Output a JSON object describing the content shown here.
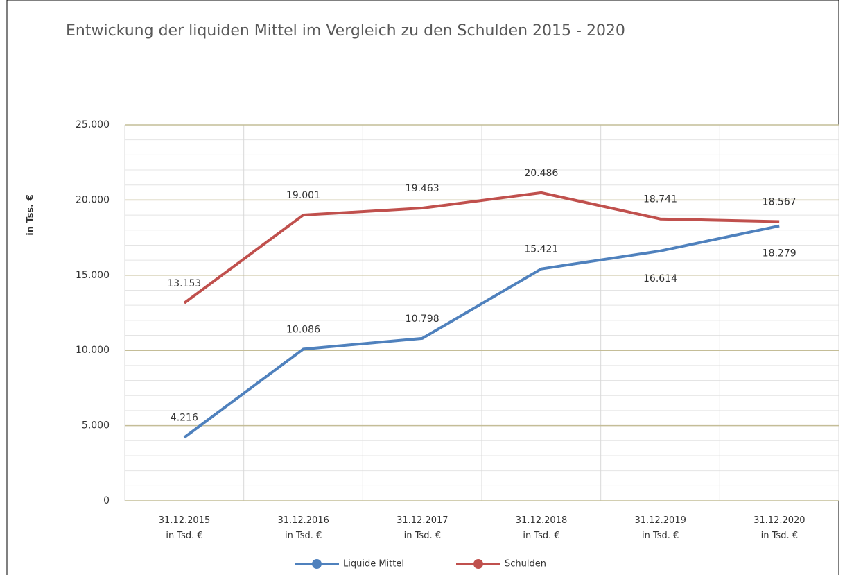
{
  "chart_data": {
    "type": "line",
    "title": "Entwickung der liquiden Mittel im Vergleich zu den Schulden 2015 - 2020",
    "y_label": "in Tss. €",
    "categories": [
      "31.12.2015\nin Tsd. €",
      "31.12.2016\nin Tsd. €",
      "31.12.2017\nin Tsd. €",
      "31.12.2018\nin Tsd. €",
      "31.12.2019\nin Tsd. €",
      "31.12.2020\nin Tsd. €"
    ],
    "series": [
      {
        "name": "Liquide Mittel",
        "color": "#4f81bd",
        "values": [
          4216,
          10086,
          10798,
          15421,
          16614,
          18279
        ],
        "value_labels": [
          "4.216",
          "10.086",
          "10.798",
          "15.421",
          "16.614",
          "18.279"
        ]
      },
      {
        "name": "Schulden",
        "color": "#c0504d",
        "values": [
          13153,
          19001,
          19463,
          20486,
          18741,
          18567
        ],
        "value_labels": [
          "13.153",
          "19.001",
          "19.463",
          "20.486",
          "18.741",
          "18.567"
        ]
      }
    ],
    "ylim": [
      0,
      25000
    ],
    "yticks": [
      0,
      {
        "value": 5000,
        "label": "5.000"
      },
      {
        "value": 10000,
        "label": "10.000"
      },
      {
        "value": 15000,
        "label": "15.000"
      },
      {
        "value": 20000,
        "label": "20.000"
      },
      {
        "value": 25000,
        "label": "25.000"
      }
    ],
    "grid": true,
    "legend": "bottom"
  }
}
